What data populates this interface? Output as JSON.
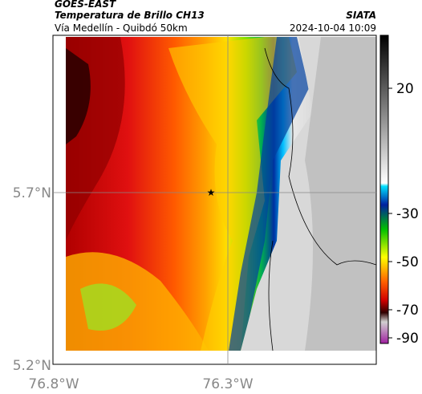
{
  "header": {
    "source": "GOES-EAST",
    "title": "Temperatura de Brillo CH13",
    "subtitle": "Vía Medellín - Quibdó 50km",
    "org": "SIATA",
    "datetime": "2024-10-04 10:09"
  },
  "map": {
    "lat_labels": [
      "5.7°N",
      "5.2°N"
    ],
    "lon_labels": [
      "76.8°W",
      "76.3°W"
    ]
  },
  "colorbar": {
    "ticks": [
      "20",
      "-30",
      "-50",
      "-70",
      "-90"
    ]
  }
}
